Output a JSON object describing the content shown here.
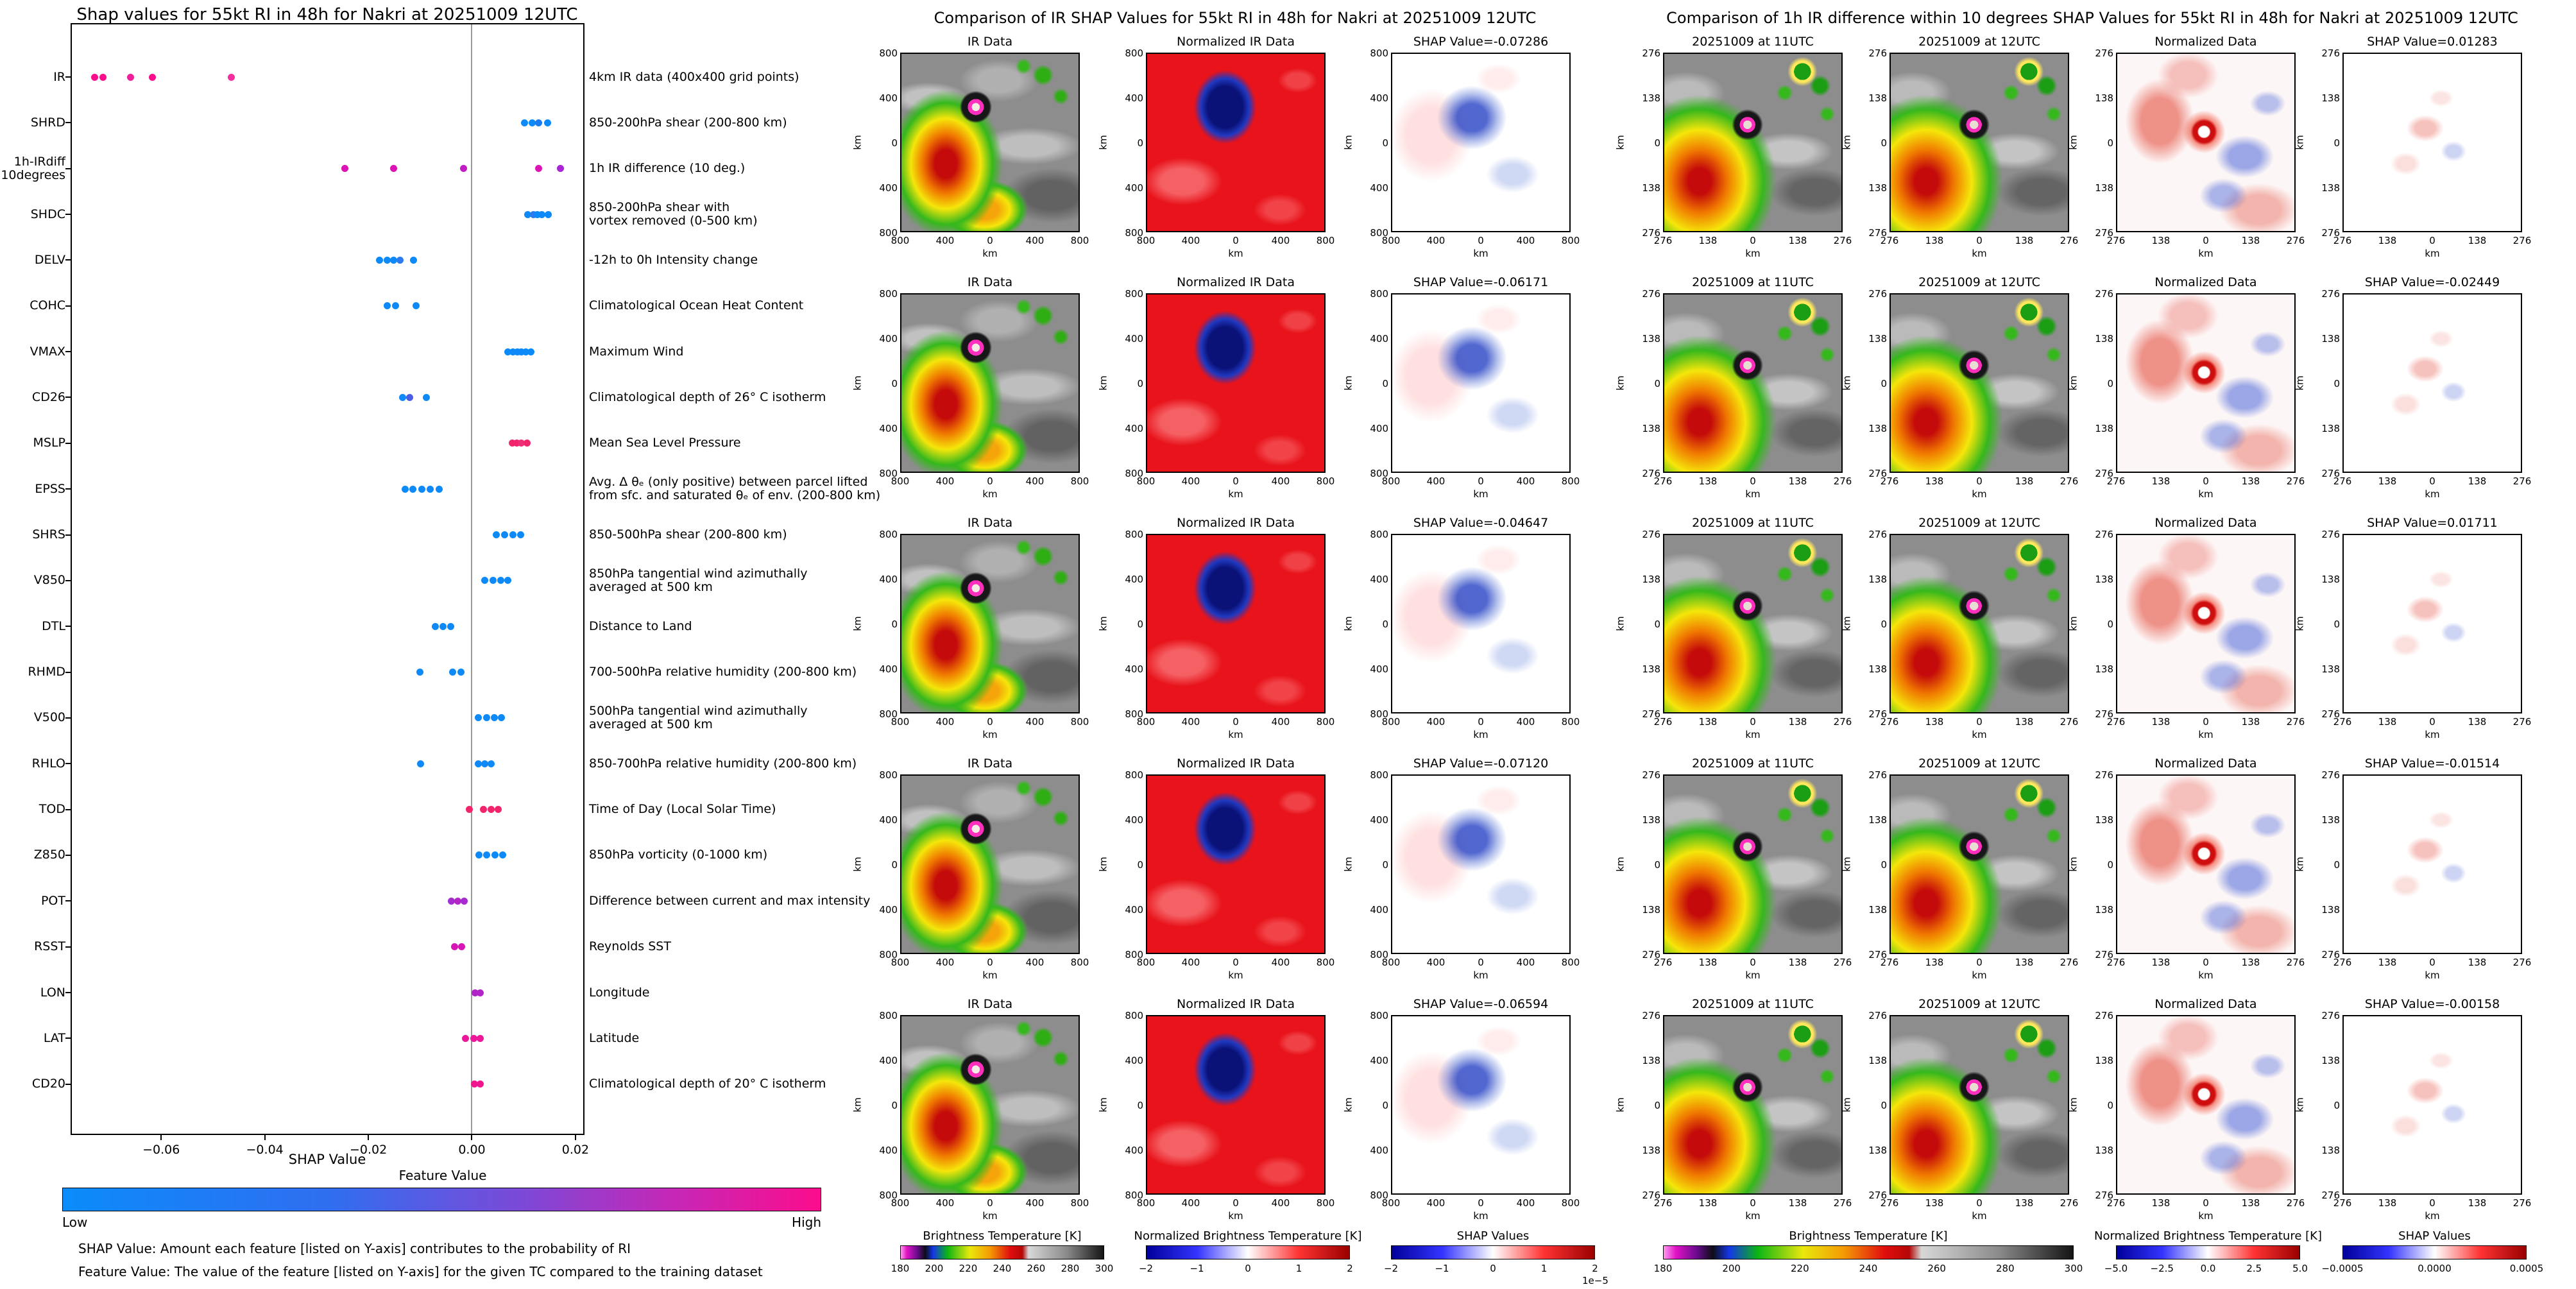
{
  "left_panel": {
    "colorbar_title": "Feature Value",
    "low_label": "Low",
    "high_label": "High",
    "footnote1": "SHAP Value: Amount each feature [listed on Y-axis] contributes to the probability of RI",
    "footnote2": "Feature Value: The value of the feature [listed on Y-axis] for the given TC compared to the training dataset",
    "colorbar_low_color": "#0b8cfa",
    "colorbar_high_color": "#fb0d8c"
  },
  "chart_data": [
    {
      "type": "scatter",
      "title": "Shap values for 55kt RI in 48h for Nakri at 20251009 12UTC",
      "xlabel": "SHAP Value",
      "xlim": [
        -0.0775,
        0.0215
      ],
      "xticks": [
        -0.06,
        -0.04,
        -0.02,
        0.0,
        0.02
      ],
      "xtick_labels": [
        "−0.06",
        "−0.04",
        "−0.02",
        "0.00",
        "0.02"
      ],
      "legend_position": "bottom-colorbar",
      "grid": false,
      "features": [
        {
          "name": "IR",
          "description": "4km IR data (400x400 grid points)",
          "values": [
            -0.07286,
            -0.0712,
            -0.06594,
            -0.06171,
            -0.04647
          ],
          "colors": [
            "#fb0d8c",
            "#fb0d8c",
            "#ef1f9a",
            "#fb0d8c",
            "#f52d9e"
          ]
        },
        {
          "name": "SHRD",
          "description": "850-200hPa shear (200-800 km)",
          "values": [
            0.0102,
            0.0116,
            0.0129,
            0.0146
          ],
          "colors": [
            "#0d8af8",
            "#0d8af8",
            "#1b7cf2",
            "#0d8af8"
          ]
        },
        {
          "name": "1h-IRdiff\n10degrees",
          "description": "1h IR difference (10 deg.)",
          "values": [
            -0.02449,
            -0.01514,
            -0.00158,
            0.01283,
            0.01711
          ],
          "colors": [
            "#dc14b4",
            "#dc14b4",
            "#c21cc4",
            "#dc14b4",
            "#a824d4"
          ]
        },
        {
          "name": "SHDC",
          "description": "850-200hPa shear with\nvortex removed (0-500 km)",
          "values": [
            0.0108,
            0.0119,
            0.0127,
            0.0135,
            0.0147
          ],
          "colors": [
            "#0d8af8",
            "#2e7af0",
            "#0d8af8",
            "#0d8af8",
            "#0d8af8"
          ]
        },
        {
          "name": "DELV",
          "description": "-12h to 0h Intensity change",
          "values": [
            -0.0178,
            -0.0164,
            -0.0151,
            -0.0139,
            -0.0113
          ],
          "colors": [
            "#0d8af8",
            "#0d8af8",
            "#0d8af8",
            "#2e7af0",
            "#0d8af8"
          ]
        },
        {
          "name": "COHC",
          "description": "Climatological Ocean Heat Content",
          "values": [
            -0.0163,
            -0.0147,
            -0.0108
          ],
          "colors": [
            "#0d8af8",
            "#0d8af8",
            "#0d8af8"
          ]
        },
        {
          "name": "VMAX",
          "description": "Maximum Wind",
          "values": [
            0.0069,
            0.0079,
            0.0088,
            0.0096,
            0.0104,
            0.0114
          ],
          "colors": [
            "#0d8af8",
            "#0d8af8",
            "#0d8af8",
            "#0d8af8",
            "#0d8af8",
            "#0d8af8"
          ]
        },
        {
          "name": "CD26",
          "description": "Climatological depth of 26° C isotherm",
          "values": [
            -0.0134,
            -0.012,
            -0.0088
          ],
          "colors": [
            "#0d8af8",
            "#4a5ee4",
            "#0d8af8"
          ]
        },
        {
          "name": "MSLP",
          "description": "Mean Sea Level Pressure",
          "values": [
            0.0078,
            0.0087,
            0.0095,
            0.0106
          ],
          "colors": [
            "#f2246c",
            "#f2246c",
            "#ee2f76",
            "#f2246c"
          ]
        },
        {
          "name": "EPSS",
          "description": "Avg. Δ θₑ (only positive) between parcel lifted\nfrom sfc. and saturated θₑ of env. (200-800 km)",
          "values": [
            -0.0129,
            -0.0114,
            -0.0097,
            -0.0081,
            -0.0063
          ],
          "colors": [
            "#0d8af8",
            "#0d8af8",
            "#0d8af8",
            "#0d8af8",
            "#0d8af8"
          ]
        },
        {
          "name": "SHRS",
          "description": "850-500hPa shear (200-800 km)",
          "values": [
            0.0047,
            0.0063,
            0.0079,
            0.0094
          ],
          "colors": [
            "#0d8af8",
            "#0d8af8",
            "#0d8af8",
            "#0d8af8"
          ]
        },
        {
          "name": "V850",
          "description": "850hPa tangential wind azimuthally\naveraged at 500 km",
          "values": [
            0.0025,
            0.0041,
            0.0056,
            0.007
          ],
          "colors": [
            "#0d8af8",
            "#0d8af8",
            "#0d8af8",
            "#0d8af8"
          ]
        },
        {
          "name": "DTL",
          "description": "Distance to Land",
          "values": [
            -0.0071,
            -0.0056,
            -0.0041
          ],
          "colors": [
            "#0d8af8",
            "#0d8af8",
            "#0d8af8"
          ]
        },
        {
          "name": "RHMD",
          "description": "700-500hPa relative humidity (200-800 km)",
          "values": [
            -0.01,
            -0.0037,
            -0.0021
          ],
          "colors": [
            "#0d8af8",
            "#0d8af8",
            "#0d8af8"
          ]
        },
        {
          "name": "V500",
          "description": "500hPa tangential wind azimuthally\naveraged at 500 km",
          "values": [
            0.0013,
            0.0028,
            0.0043,
            0.0057
          ],
          "colors": [
            "#0d8af8",
            "#0d8af8",
            "#0d8af8",
            "#0d8af8"
          ]
        },
        {
          "name": "RHLO",
          "description": "850-700hPa relative humidity (200-800 km)",
          "values": [
            -0.0099,
            0.0013,
            0.0025,
            0.0037
          ],
          "colors": [
            "#0d8af8",
            "#0d8af8",
            "#0d8af8",
            "#0d8af8"
          ]
        },
        {
          "name": "TOD",
          "description": "Time of Day (Local Solar Time)",
          "values": [
            -0.0005,
            0.0022,
            0.0037,
            0.0051
          ],
          "colors": [
            "#f2246c",
            "#f2246c",
            "#f2246c",
            "#f2246c"
          ]
        },
        {
          "name": "Z850",
          "description": "850hPa vorticity (0-1000 km)",
          "values": [
            0.0014,
            0.0029,
            0.0045,
            0.006
          ],
          "colors": [
            "#0d8af8",
            "#0d8af8",
            "#0d8af8",
            "#0d8af8"
          ]
        },
        {
          "name": "POT",
          "description": "Difference between current and max intensity",
          "values": [
            -0.004,
            -0.0027,
            -0.0015
          ],
          "colors": [
            "#a62bd1",
            "#b426c6",
            "#a62bd1"
          ]
        },
        {
          "name": "RSST",
          "description": "Reynolds SST",
          "values": [
            -0.0033,
            -0.002
          ],
          "colors": [
            "#d716b6",
            "#d716b6"
          ]
        },
        {
          "name": "LON",
          "description": "Longitude",
          "values": [
            0.0006,
            0.0016
          ],
          "colors": [
            "#b224c9",
            "#b224c9"
          ]
        },
        {
          "name": "LAT",
          "description": "Latitude",
          "values": [
            -0.0012,
            0.0004,
            0.0016
          ],
          "colors": [
            "#ec1899",
            "#ec1899",
            "#ec1899"
          ]
        },
        {
          "name": "CD20",
          "description": "Climatological depth of 20° C isotherm",
          "values": [
            0.0005,
            0.0016
          ],
          "colors": [
            "#f21590",
            "#f21590"
          ]
        }
      ]
    },
    {
      "type": "heatmap",
      "title": "Comparison of IR SHAP Values for 55kt RI in 48h for Nakri at 20251009 12UTC",
      "row_shap_values": [
        -0.07286,
        -0.06171,
        -0.04647,
        -0.0712,
        -0.06594
      ],
      "rows": [
        [
          "IR Data",
          "Normalized IR Data",
          "SHAP Value=-0.07286"
        ],
        [
          "IR Data",
          "Normalized IR Data",
          "SHAP Value=-0.06171"
        ],
        [
          "IR Data",
          "Normalized IR Data",
          "SHAP Value=-0.04647"
        ],
        [
          "IR Data",
          "Normalized IR Data",
          "SHAP Value=-0.07120"
        ],
        [
          "IR Data",
          "Normalized IR Data",
          "SHAP Value=-0.06594"
        ]
      ],
      "ticks": [
        "800",
        "400",
        "0",
        "400",
        "800"
      ],
      "axis_range_km": [
        -800,
        800
      ],
      "axis_label": "km",
      "colorbars": [
        {
          "title": "Brightness Temperature [K]",
          "ticks": [
            "180",
            "200",
            "220",
            "240",
            "260",
            "280",
            "300"
          ],
          "style": "cb-ir"
        },
        {
          "title": "Normalized Brightness Temperature [K]",
          "ticks": [
            "−2",
            "−1",
            "0",
            "1",
            "2"
          ],
          "style": "cb-bwr"
        },
        {
          "title": "SHAP Values",
          "ticks": [
            "−2",
            "−1",
            "0",
            "1",
            "2"
          ],
          "exponent": "1e−5",
          "style": "cb-bwr"
        }
      ]
    },
    {
      "type": "heatmap",
      "title": "Comparison of 1h IR difference within 10 degrees SHAP Values for 55kt RI in 48h for Nakri at 20251009 12UTC",
      "row_shap_values": [
        0.01283,
        -0.02449,
        0.01711,
        -0.01514,
        -0.00158
      ],
      "rows": [
        [
          "20251009 at 11UTC",
          "20251009 at 12UTC",
          "Normalized Data",
          "SHAP Value=0.01283"
        ],
        [
          "20251009 at 11UTC",
          "20251009 at 12UTC",
          "Normalized Data",
          "SHAP Value=-0.02449"
        ],
        [
          "20251009 at 11UTC",
          "20251009 at 12UTC",
          "Normalized Data",
          "SHAP Value=0.01711"
        ],
        [
          "20251009 at 11UTC",
          "20251009 at 12UTC",
          "Normalized Data",
          "SHAP Value=-0.01514"
        ],
        [
          "20251009 at 11UTC",
          "20251009 at 12UTC",
          "Normalized Data",
          "SHAP Value=-0.00158"
        ]
      ],
      "ticks": [
        "276",
        "138",
        "0",
        "138",
        "276"
      ],
      "axis_range_km": [
        -276,
        276
      ],
      "axis_label": "km",
      "colorbars": [
        {
          "title": "Brightness Temperature [K]",
          "ticks": [
            "180",
            "200",
            "220",
            "240",
            "260",
            "280",
            "300"
          ],
          "style": "cb-ir"
        },
        {
          "title": "Normalized Brightness Temperature [K]",
          "ticks": [
            "−5.0",
            "−2.5",
            "0.0",
            "2.5",
            "5.0"
          ],
          "style": "cb-bwr"
        },
        {
          "title": "SHAP Values",
          "ticks": [
            "−0.0005",
            "0.0000",
            "0.0005"
          ],
          "style": "cb-bwr"
        }
      ]
    }
  ]
}
